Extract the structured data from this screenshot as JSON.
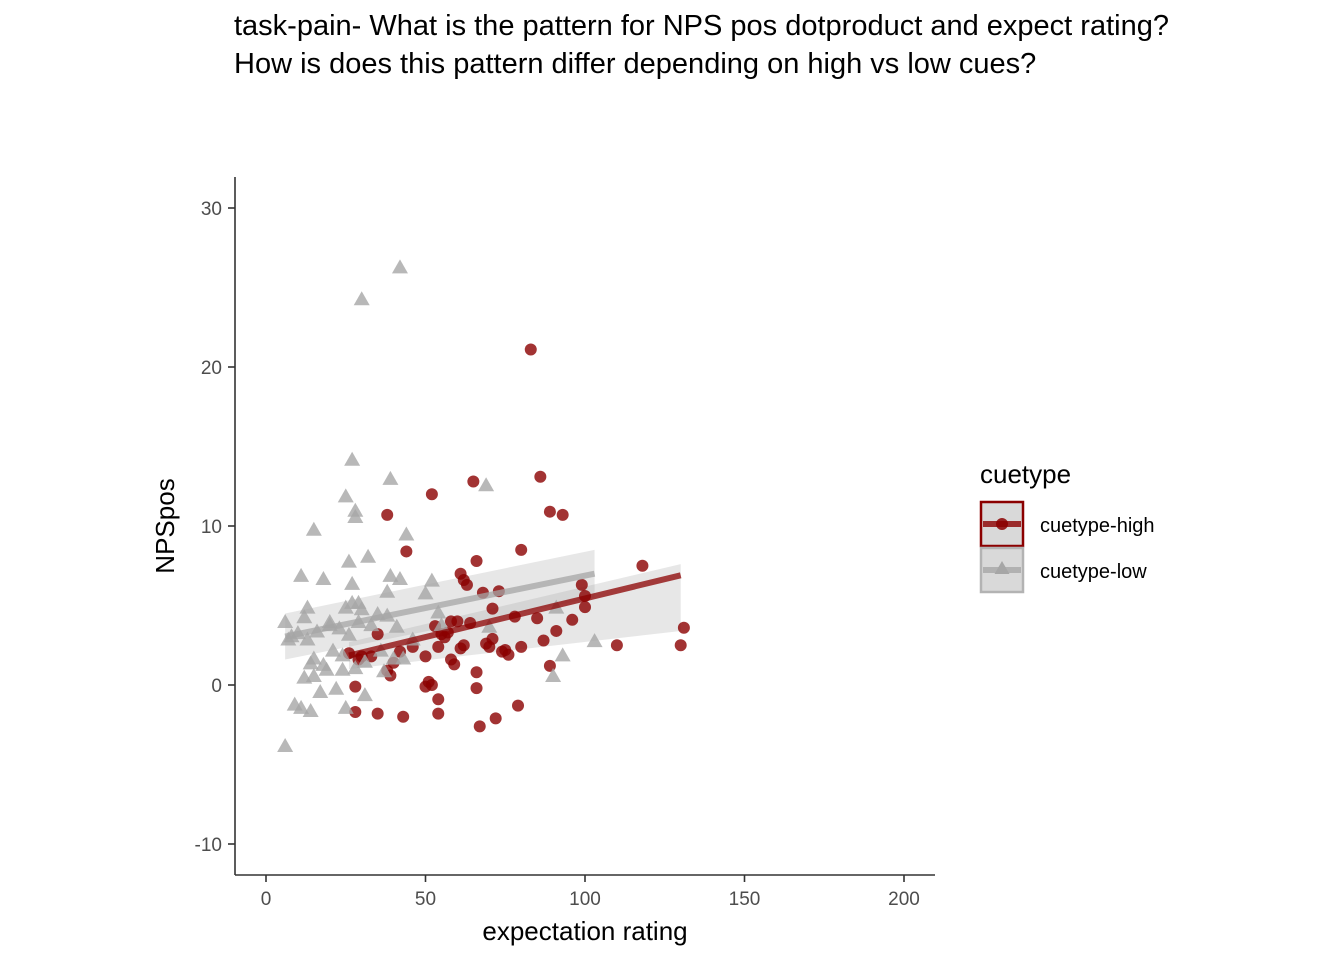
{
  "chart_data": {
    "type": "scatter",
    "title_lines": [
      "task-pain- What is the pattern for NPS pos dotproduct and expect rating?",
      "How is does this pattern differ depending on high vs low cues?"
    ],
    "xlabel": "expectation rating",
    "ylabel": "NPSpos",
    "xlim": [
      -9,
      210
    ],
    "ylim": [
      -12,
      32
    ],
    "xticks": [
      0,
      50,
      100,
      150,
      200
    ],
    "yticks": [
      -10,
      0,
      10,
      20,
      30
    ],
    "grid": false,
    "legend": {
      "title": "cuetype",
      "placement": "right",
      "entries": [
        "cuetype-high",
        "cuetype-low"
      ]
    },
    "series": [
      {
        "name": "cuetype-high",
        "color": "#8B0000",
        "marker": "circle",
        "points": [
          [
            26,
            2.0
          ],
          [
            28,
            -0.1
          ],
          [
            28,
            -1.7
          ],
          [
            29,
            1.6
          ],
          [
            30,
            1.8
          ],
          [
            33,
            1.8
          ],
          [
            35,
            3.2
          ],
          [
            35,
            -1.8
          ],
          [
            38,
            10.7
          ],
          [
            38,
            0.9
          ],
          [
            39,
            0.6
          ],
          [
            40,
            1.4
          ],
          [
            42,
            2.1
          ],
          [
            43,
            -2.0
          ],
          [
            44,
            8.4
          ],
          [
            46,
            2.4
          ],
          [
            50,
            -0.1
          ],
          [
            50,
            1.8
          ],
          [
            51,
            0.2
          ],
          [
            52,
            12.0
          ],
          [
            52,
            0.0
          ],
          [
            53,
            3.7
          ],
          [
            54,
            2.4
          ],
          [
            54,
            -0.9
          ],
          [
            54,
            -1.8
          ],
          [
            55,
            3.2
          ],
          [
            56,
            3.0
          ],
          [
            57,
            3.3
          ],
          [
            58,
            1.6
          ],
          [
            58,
            4.0
          ],
          [
            59,
            1.3
          ],
          [
            60,
            4.0
          ],
          [
            61,
            7.0
          ],
          [
            61,
            2.3
          ],
          [
            62,
            2.5
          ],
          [
            62,
            6.6
          ],
          [
            63,
            6.3
          ],
          [
            64,
            3.9
          ],
          [
            65,
            12.8
          ],
          [
            66,
            7.8
          ],
          [
            66,
            -0.2
          ],
          [
            66,
            0.8
          ],
          [
            67,
            -2.6
          ],
          [
            68,
            5.8
          ],
          [
            69,
            2.6
          ],
          [
            70,
            2.4
          ],
          [
            71,
            4.8
          ],
          [
            71,
            2.9
          ],
          [
            72,
            -2.1
          ],
          [
            73,
            5.9
          ],
          [
            74,
            2.1
          ],
          [
            75,
            2.2
          ],
          [
            76,
            1.9
          ],
          [
            78,
            4.3
          ],
          [
            79,
            -1.3
          ],
          [
            80,
            8.5
          ],
          [
            80,
            2.4
          ],
          [
            83,
            21.1
          ],
          [
            85,
            4.2
          ],
          [
            86,
            13.1
          ],
          [
            87,
            2.8
          ],
          [
            89,
            10.9
          ],
          [
            89,
            1.2
          ],
          [
            91,
            3.4
          ],
          [
            93,
            10.7
          ],
          [
            96,
            4.1
          ],
          [
            99,
            6.3
          ],
          [
            100,
            5.6
          ],
          [
            100,
            4.9
          ],
          [
            110,
            2.5
          ],
          [
            118,
            7.5
          ],
          [
            130,
            2.5
          ],
          [
            131,
            3.6
          ]
        ],
        "fit": {
          "x": [
            26,
            130
          ],
          "y": [
            1.85,
            6.9
          ],
          "band_lower": [
            1.0,
            3.4
          ],
          "band_upper": [
            2.7,
            7.6
          ]
        }
      },
      {
        "name": "cuetype-low",
        "color": "#a6a6a6",
        "marker": "triangle",
        "points": [
          [
            6,
            -3.9
          ],
          [
            6,
            3.9
          ],
          [
            7,
            2.8
          ],
          [
            8,
            3.0
          ],
          [
            9,
            -1.3
          ],
          [
            10,
            3.2
          ],
          [
            11,
            6.8
          ],
          [
            11,
            -1.5
          ],
          [
            12,
            0.4
          ],
          [
            12,
            4.2
          ],
          [
            13,
            4.8
          ],
          [
            13,
            2.8
          ],
          [
            14,
            1.3
          ],
          [
            14,
            -1.7
          ],
          [
            15,
            9.7
          ],
          [
            15,
            1.6
          ],
          [
            15,
            0.5
          ],
          [
            16,
            3.3
          ],
          [
            17,
            -0.5
          ],
          [
            18,
            6.6
          ],
          [
            18,
            1.2
          ],
          [
            19,
            0.9
          ],
          [
            20,
            3.7
          ],
          [
            21,
            2.1
          ],
          [
            22,
            -0.3
          ],
          [
            23,
            3.5
          ],
          [
            24,
            1.8
          ],
          [
            25,
            11.8
          ],
          [
            25,
            4.8
          ],
          [
            25,
            -1.5
          ],
          [
            26,
            7.7
          ],
          [
            26,
            3.1
          ],
          [
            27,
            14.1
          ],
          [
            27,
            6.3
          ],
          [
            27,
            5.1
          ],
          [
            28,
            10.9
          ],
          [
            28,
            10.5
          ],
          [
            28,
            1.0
          ],
          [
            29,
            3.9
          ],
          [
            29,
            5.1
          ],
          [
            30,
            24.2
          ],
          [
            30,
            4.7
          ],
          [
            31,
            1.4
          ],
          [
            31,
            -0.7
          ],
          [
            32,
            8.0
          ],
          [
            33,
            3.7
          ],
          [
            36,
            2.1
          ],
          [
            37,
            0.8
          ],
          [
            38,
            5.8
          ],
          [
            38,
            4.3
          ],
          [
            39,
            12.9
          ],
          [
            39,
            6.8
          ],
          [
            40,
            1.6
          ],
          [
            41,
            3.6
          ],
          [
            42,
            26.2
          ],
          [
            42,
            6.6
          ],
          [
            43,
            1.6
          ],
          [
            44,
            9.4
          ],
          [
            50,
            5.7
          ],
          [
            52,
            6.5
          ],
          [
            54,
            4.5
          ],
          [
            55,
            3.7
          ],
          [
            69,
            12.5
          ],
          [
            70,
            3.6
          ],
          [
            90,
            0.5
          ],
          [
            91,
            4.8
          ],
          [
            93,
            1.8
          ],
          [
            103,
            2.7
          ],
          [
            46,
            2.8
          ],
          [
            35,
            4.4
          ],
          [
            20,
            3.9
          ],
          [
            24,
            0.9
          ]
        ],
        "fit": {
          "x": [
            6,
            103
          ],
          "y": [
            3.05,
            7.0
          ],
          "band_lower": [
            1.6,
            5.5
          ],
          "band_upper": [
            4.5,
            8.5
          ]
        }
      }
    ]
  }
}
